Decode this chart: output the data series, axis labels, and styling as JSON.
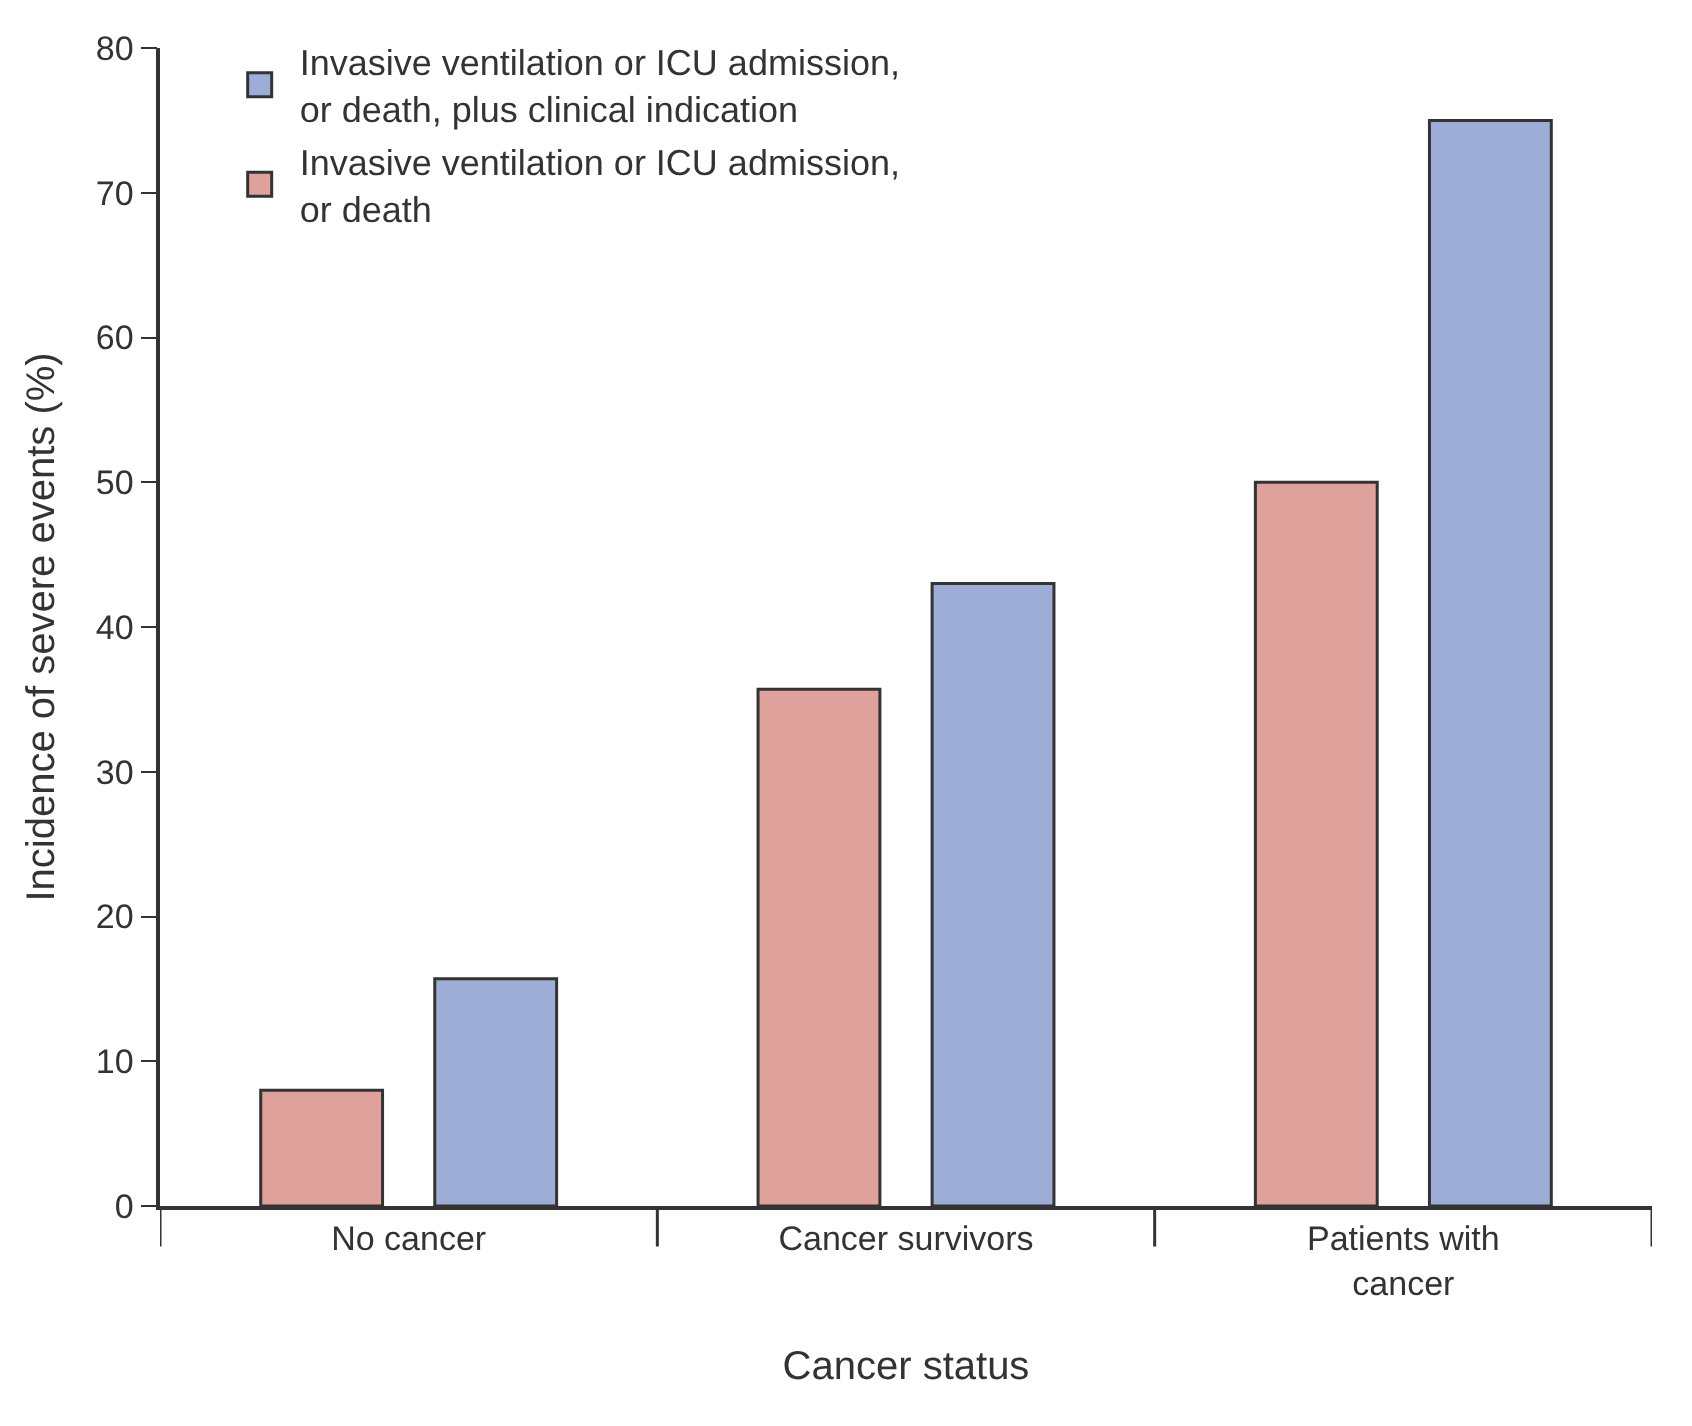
{
  "chart_data": {
    "type": "bar",
    "xlabel": "Cancer status",
    "ylabel": "Incidence of severe events (%)",
    "categories": [
      "No cancer",
      "Cancer survivors",
      "Patients with cancer"
    ],
    "series": [
      {
        "name": "Invasive ventilation or ICU admission, or death",
        "color": "#dfa19c",
        "values": [
          8,
          35.7,
          50
        ]
      },
      {
        "name": "Invasive ventilation or ICU admission, or death, plus clinical indication",
        "color": "#9eadd6",
        "values": [
          15.7,
          43,
          75
        ]
      }
    ],
    "ylim": [
      0,
      80
    ],
    "yticks": [
      0,
      10,
      20,
      30,
      40,
      50,
      60,
      70,
      80
    ],
    "legend": "top left"
  }
}
